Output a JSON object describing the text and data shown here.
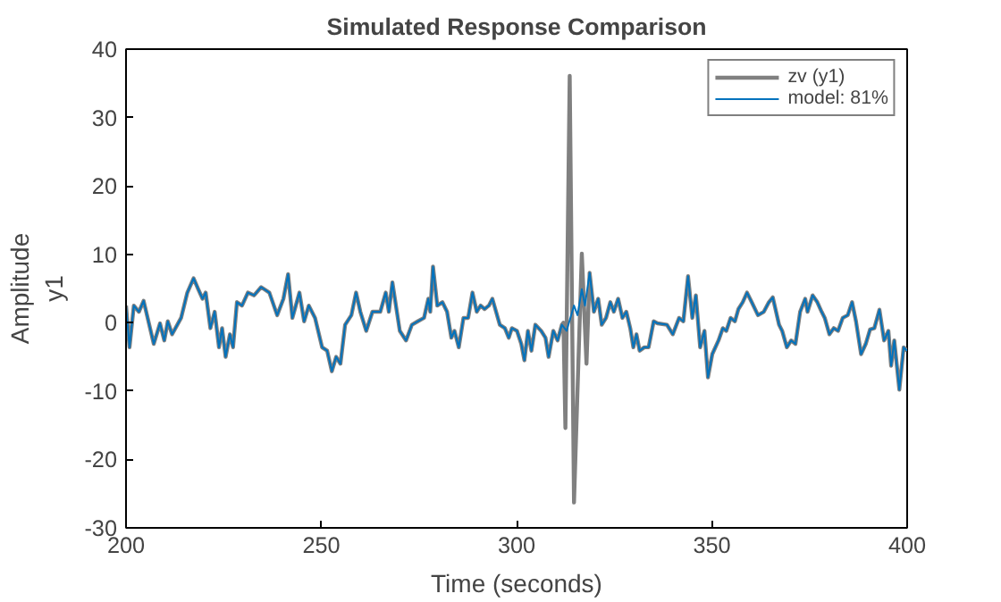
{
  "chart_data": {
    "type": "line",
    "title": "Simulated Response Comparison",
    "xlabel": "Time (seconds)",
    "ylabel": "Amplitude\ny1",
    "xlim": [
      200,
      400
    ],
    "xticks": [
      200,
      250,
      300,
      350,
      400
    ],
    "ylim": [
      -30,
      40
    ],
    "yticks": [
      -30,
      -20,
      -10,
      0,
      10,
      20,
      30,
      40
    ],
    "grid": false,
    "legend": "top right",
    "line_style": "solid",
    "marker": "none",
    "series": [
      {
        "name": "zv (y1)",
        "color": "#808080",
        "x": [
          200,
          200.9,
          202,
          203.3,
          204.5,
          207.1,
          208.7,
          209.8,
          210.7,
          211.8,
          214.1,
          215.7,
          217.3,
          218.5,
          219.6,
          220.4,
          221.6,
          222.7,
          223.8,
          224.6,
          225.5,
          226.6,
          227.4,
          228.4,
          229.7,
          231.2,
          232.8,
          234.6,
          236.7,
          238.7,
          240.3,
          241.5,
          242.6,
          244.4,
          245.6,
          246.8,
          248.4,
          250.2,
          251.5,
          252.7,
          253.8,
          254.9,
          256.1,
          257.7,
          258.9,
          260,
          261.5,
          263.1,
          265.1,
          266.5,
          267.3,
          268.2,
          270.1,
          271.7,
          273.2,
          274.7,
          276.3,
          277.4,
          277.9,
          278.6,
          279.7,
          281.0,
          282.2,
          283.3,
          284.1,
          285.2,
          286.4,
          287.6,
          288.7,
          289.8,
          290.8,
          291.8,
          292.9,
          293.8,
          295.7,
          297.0,
          298.0,
          298.8,
          300.1,
          301.2,
          302.0,
          302.9,
          303.8,
          304.8,
          306.3,
          307.4,
          308.2,
          309.4,
          310.5,
          311.6,
          312.0,
          312.5,
          313.6,
          314.7,
          316.7,
          317.9,
          318.7,
          319.8,
          320.9,
          321.8,
          322.9,
          324.0,
          324.9,
          326.0,
          327.1,
          328.1,
          329.1,
          329.9,
          330.7,
          331.5,
          332.7,
          333.8,
          335.1,
          336.1,
          338.5,
          340.0,
          341.6,
          342.7,
          343.9,
          345.0,
          345.9,
          347.0,
          348.1,
          349.0,
          350.1,
          351.7,
          352.8,
          353.7,
          354.8,
          355.9,
          356.8,
          357.9,
          359.0,
          360.2,
          361.8,
          363.3,
          364.6,
          365.6,
          367.2,
          368.0,
          369.2,
          370.3,
          371.4,
          372.6,
          373.9,
          374.5,
          375.8,
          377.0,
          378.1,
          378.9,
          380.1,
          381.2,
          382.3,
          383.5,
          384.8,
          385.9,
          386.9,
          388.2,
          389.4,
          390.5,
          391.6,
          392.9,
          394.1,
          395.2,
          395.9,
          396.7,
          398.0,
          399.1,
          400
        ],
        "values": [
          2.5,
          -3.6,
          2.5,
          1.6,
          3.2,
          -3.1,
          -0.1,
          -2.6,
          0.2,
          -1.7,
          0.7,
          4.4,
          6.5,
          4.9,
          3.5,
          4.4,
          -0.8,
          1.6,
          -3.6,
          -0.8,
          -5,
          -1.7,
          -3.6,
          3,
          2.5,
          4.4,
          4,
          5.2,
          4.4,
          1.1,
          3.5,
          7.1,
          0.7,
          4.4,
          0.2,
          2.5,
          0.7,
          -3.6,
          -4.1,
          -7.1,
          -5,
          -6,
          -0.3,
          1.1,
          4.4,
          1.6,
          -1.2,
          1.6,
          1.6,
          4.4,
          1.6,
          5.9,
          -1.2,
          -2.6,
          -0.3,
          0.2,
          0.7,
          3.5,
          1.6,
          8.2,
          2.5,
          3,
          1.6,
          -2.2,
          -1.2,
          -3.6,
          0.7,
          0.7,
          4.4,
          1.6,
          2.5,
          2,
          2.5,
          3.5,
          -0.3,
          -0.8,
          -2.2,
          -0.8,
          -1.2,
          -3.1,
          -5.5,
          -1.2,
          -4.1,
          -0.3,
          -1.2,
          -2.2,
          -5,
          -1.2,
          -2.6,
          -0.3,
          0,
          -15.4,
          36.1,
          -26.3,
          10.1,
          -6,
          7.3,
          1.6,
          3.5,
          -0.3,
          0.7,
          3,
          1.6,
          3.5,
          0.7,
          1.6,
          -0.8,
          -3.6,
          -1.7,
          -4.1,
          -3.6,
          -3.6,
          0.2,
          -0.1,
          -0.3,
          -1.7,
          0.7,
          0.2,
          6.8,
          0.7,
          4,
          -3.6,
          -1.2,
          -8,
          -4.6,
          -2.6,
          -0.8,
          -1.2,
          0.7,
          0.2,
          2,
          3,
          4.4,
          3,
          1.1,
          1.6,
          3,
          3.7,
          -0.3,
          -1.2,
          -3.6,
          -2.6,
          -3.1,
          1.6,
          3.5,
          1.6,
          4,
          3,
          1.6,
          0.7,
          -1.7,
          -0.8,
          -1.2,
          0.7,
          1.1,
          3,
          0.2,
          -4.6,
          -3.1,
          -1,
          -0.8,
          1.9,
          -2.6,
          -1.2,
          -6.3,
          -2.6,
          -9.8,
          -3.6,
          -4.1
        ]
      },
      {
        "name": "model: 81%",
        "color": "#0072bd",
        "x": [
          200,
          200.9,
          202,
          203.3,
          204.5,
          207.1,
          208.7,
          209.8,
          210.7,
          211.8,
          214.1,
          215.7,
          217.3,
          218.5,
          219.6,
          220.4,
          221.6,
          222.7,
          223.8,
          224.6,
          225.5,
          226.6,
          227.4,
          228.4,
          229.7,
          231.2,
          232.8,
          234.6,
          236.7,
          238.7,
          240.3,
          241.5,
          242.6,
          244.4,
          245.6,
          246.8,
          248.4,
          250.2,
          251.5,
          252.7,
          253.8,
          254.9,
          256.1,
          257.7,
          258.9,
          260,
          261.5,
          263.1,
          265.1,
          266.5,
          267.3,
          268.2,
          270.1,
          271.7,
          273.2,
          274.7,
          276.3,
          277.4,
          277.9,
          278.6,
          279.7,
          281.0,
          282.2,
          283.3,
          284.1,
          285.2,
          286.4,
          287.6,
          288.7,
          289.8,
          290.8,
          291.8,
          292.9,
          293.8,
          295.7,
          297.0,
          298.0,
          298.8,
          300.1,
          301.2,
          302.0,
          302.9,
          303.8,
          304.8,
          306.3,
          307.4,
          308.2,
          309.4,
          310.5,
          311.6,
          312.8,
          314.7,
          315.6,
          316.7,
          317.5,
          318.7,
          319.8,
          320.9,
          321.8,
          322.9,
          324.0,
          324.9,
          326.0,
          327.1,
          328.1,
          329.1,
          329.9,
          330.7,
          331.5,
          332.7,
          333.8,
          335.1,
          336.1,
          338.5,
          340.0,
          341.6,
          342.7,
          343.9,
          345.0,
          345.9,
          347.0,
          348.1,
          349.0,
          350.1,
          351.7,
          352.8,
          353.7,
          354.8,
          355.9,
          356.8,
          357.9,
          359.0,
          360.2,
          361.8,
          363.3,
          364.6,
          365.6,
          367.2,
          368.0,
          369.2,
          370.3,
          371.4,
          372.6,
          373.9,
          374.5,
          375.8,
          377.0,
          378.1,
          378.9,
          380.1,
          381.2,
          382.3,
          383.5,
          384.8,
          385.9,
          386.9,
          388.2,
          389.4,
          390.5,
          391.6,
          392.9,
          394.1,
          395.2,
          395.9,
          396.7,
          398.0,
          399.1,
          400
        ],
        "values": [
          2.5,
          -3.6,
          2.5,
          1.6,
          3.2,
          -3.1,
          -0.1,
          -2.6,
          0.2,
          -1.7,
          0.7,
          4.4,
          6.5,
          4.9,
          3.5,
          4.4,
          -0.8,
          1.6,
          -3.6,
          -0.8,
          -5,
          -1.7,
          -3.6,
          3,
          2.5,
          4.4,
          4,
          5.2,
          4.4,
          1.1,
          3.5,
          7.1,
          0.7,
          4.4,
          0.2,
          2.5,
          0.7,
          -3.6,
          -4.1,
          -7.1,
          -5,
          -6,
          -0.3,
          1.1,
          4.4,
          1.6,
          -1.2,
          1.6,
          1.6,
          4.4,
          1.6,
          5.9,
          -1.2,
          -2.6,
          -0.3,
          0.2,
          0.7,
          3.5,
          1.6,
          8.2,
          2.5,
          3,
          1.6,
          -2.2,
          -1.2,
          -3.6,
          0.7,
          0.7,
          4.4,
          1.6,
          2.5,
          2,
          2.5,
          3.5,
          -0.3,
          -0.8,
          -2.2,
          -0.8,
          -1.2,
          -3.1,
          -5.5,
          -1.2,
          -4.1,
          -0.3,
          -1.2,
          -2.2,
          -5,
          -1.2,
          -2.6,
          -0.3,
          -1.2,
          2.5,
          1.1,
          4.9,
          2.5,
          7.3,
          1.6,
          3.5,
          -0.3,
          0.7,
          3,
          1.6,
          3.5,
          0.7,
          1.6,
          -0.8,
          -3.6,
          -1.7,
          -4.1,
          -3.6,
          -3.6,
          0.2,
          -0.1,
          -0.3,
          -1.7,
          0.7,
          0.2,
          6.8,
          0.7,
          4,
          -3.6,
          -1.2,
          -8,
          -4.6,
          -2.6,
          -0.8,
          -1.2,
          0.7,
          0.2,
          2,
          3,
          4.4,
          3,
          1.1,
          1.6,
          3,
          3.7,
          -0.3,
          -1.2,
          -3.6,
          -2.6,
          -3.1,
          1.6,
          3.5,
          1.6,
          4,
          3,
          1.6,
          0.7,
          -1.7,
          -0.8,
          -1.2,
          0.7,
          1.1,
          3,
          0.2,
          -4.6,
          -3.1,
          -1,
          -0.8,
          1.9,
          -2.6,
          -1.2,
          -6.3,
          -2.6,
          -9.8,
          -3.6,
          -4.1
        ]
      }
    ]
  }
}
